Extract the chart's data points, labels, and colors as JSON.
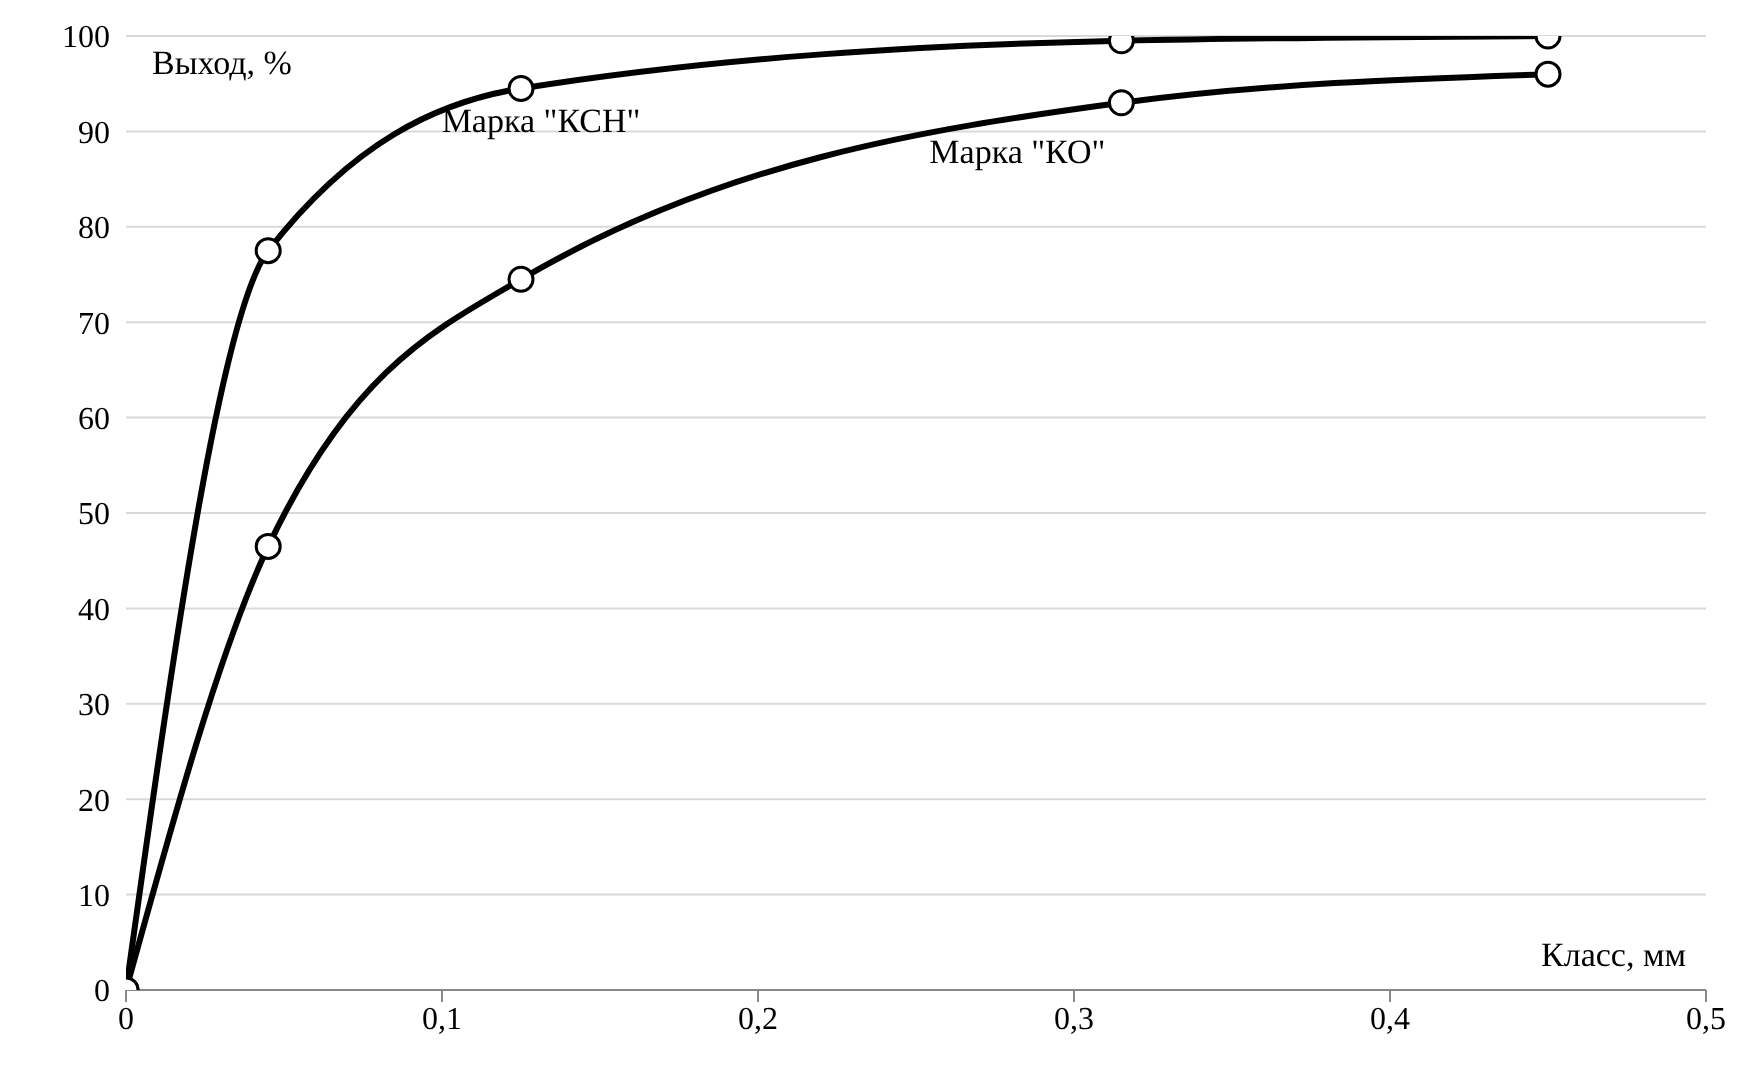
{
  "chart_data": {
    "type": "line",
    "xlabel": "Класс, мм",
    "ylabel": "Выход, %",
    "series": [
      {
        "name": "Марка \"КСН\"",
        "color": "#000000",
        "x": [
          0,
          0.045,
          0.125,
          0.315,
          0.45
        ],
        "values": [
          0,
          77.5,
          94.5,
          99.5,
          100
        ]
      },
      {
        "name": "Марка \"КО\"",
        "color": "#000000",
        "x": [
          0,
          0.045,
          0.125,
          0.315,
          0.45
        ],
        "values": [
          0,
          46.5,
          74.5,
          93,
          96
        ]
      }
    ],
    "xlim": [
      0,
      0.5
    ],
    "xticks": [
      0,
      {
        "value": 0.1,
        "label": "0,1"
      },
      {
        "value": 0.2,
        "label": "0,2"
      },
      {
        "value": 0.3,
        "label": "0,3"
      },
      {
        "value": 0.4,
        "label": "0,4"
      },
      {
        "value": 0.5,
        "label": "0,5"
      }
    ],
    "ylim": [
      0,
      100
    ],
    "yticks": [
      0,
      10,
      20,
      30,
      40,
      50,
      60,
      70,
      80,
      90,
      100
    ],
    "grid": "y",
    "marker": "circle",
    "line_style": "solid"
  }
}
